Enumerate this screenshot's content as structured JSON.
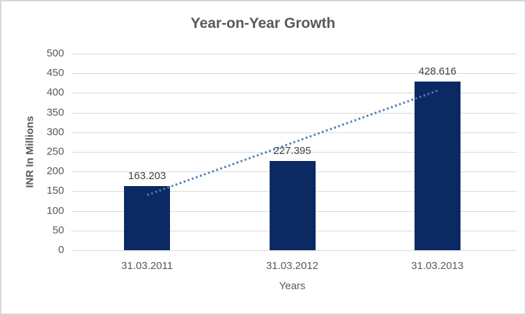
{
  "chart_data": {
    "type": "bar",
    "title": "Year-on-Year Growth",
    "categories": [
      "31.03.2011",
      "31.03.2012",
      "31.03.2013"
    ],
    "values": [
      163.203,
      227.395,
      428.616
    ],
    "labels": [
      "163.203",
      "227.395",
      "428.616"
    ],
    "xlabel": "Years",
    "ylabel": "INR In Millions",
    "ylim": [
      0,
      500
    ],
    "yticks": [
      0,
      50,
      100,
      150,
      200,
      250,
      300,
      350,
      400,
      450,
      500
    ],
    "grid": true,
    "legend": "none",
    "bar_color": "#0B2A64",
    "trendline": {
      "type": "linear",
      "style": "dotted",
      "color": "#4A7EBB"
    }
  },
  "colors": {
    "gridline": "#D9D9D9",
    "title_text": "#595959",
    "axis_text": "#595959",
    "data_label_text": "#404040",
    "frame_border": "#D6D6D6",
    "background": "#FFFFFF"
  }
}
